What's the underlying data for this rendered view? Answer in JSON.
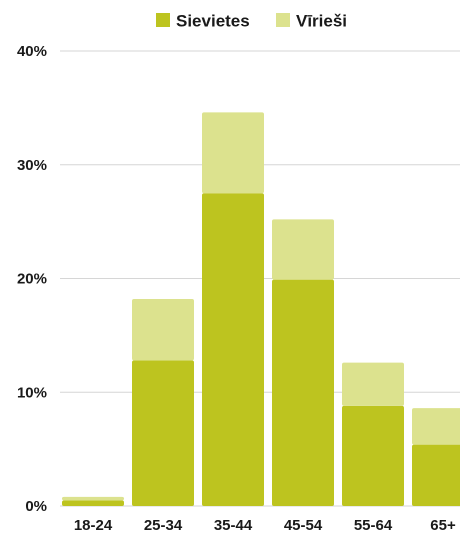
{
  "chart_data": {
    "type": "bar",
    "stacked": true,
    "categories": [
      "18-24",
      "25-34",
      "35-44",
      "45-54",
      "55-64",
      "65+"
    ],
    "series": [
      {
        "name": "Sievietes",
        "values": [
          0.5,
          12.8,
          27.5,
          19.9,
          8.8,
          5.4
        ]
      },
      {
        "name": "Vīrieši",
        "values": [
          0.3,
          5.4,
          7.1,
          5.3,
          3.8,
          3.2
        ]
      }
    ],
    "yticks": [
      "0%",
      "10%",
      "20%",
      "30%",
      "40%"
    ],
    "ylim": [
      0,
      40
    ],
    "grid": true,
    "legend_position": "top-right",
    "colors": {
      "Sievietes": "#bdc41f",
      "Vīrieši": "#dce28e",
      "grid": "#d6d6d6"
    }
  }
}
